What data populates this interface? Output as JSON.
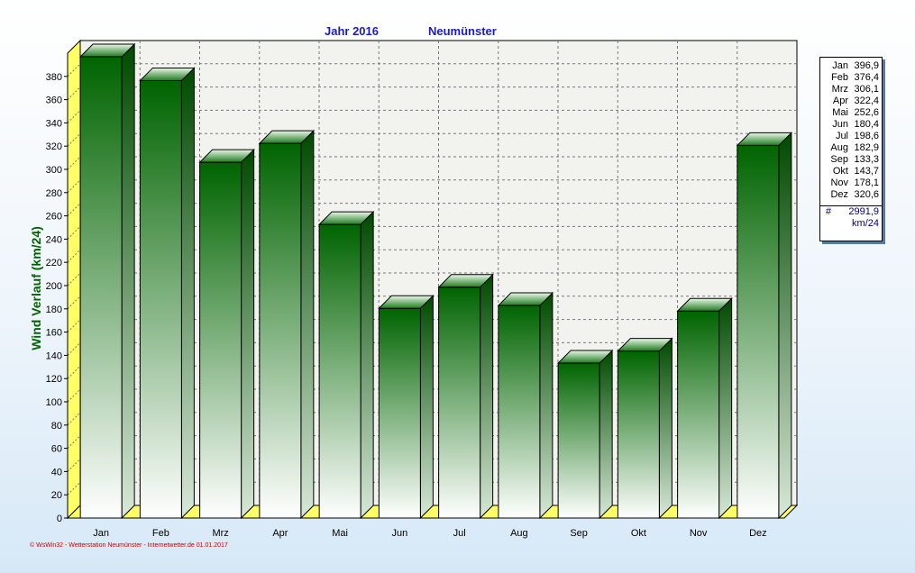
{
  "header": {
    "year_label": "Jahr  2016",
    "station": "Neumünster"
  },
  "chart_data": {
    "type": "bar",
    "categories": [
      "Jan",
      "Feb",
      "Mrz",
      "Apr",
      "Mai",
      "Jun",
      "Jul",
      "Aug",
      "Sep",
      "Okt",
      "Nov",
      "Dez"
    ],
    "values": [
      396.9,
      376.4,
      306.1,
      322.4,
      252.6,
      180.4,
      198.6,
      182.9,
      133.3,
      143.7,
      178.1,
      320.6
    ],
    "ylabel": "Wind Verlauf  (km/24)",
    "ylim": [
      0,
      400
    ],
    "yticks": [
      0,
      20,
      40,
      60,
      80,
      100,
      120,
      140,
      160,
      180,
      200,
      220,
      240,
      260,
      280,
      300,
      320,
      340,
      360,
      380
    ],
    "grid": true,
    "colors": {
      "bar_top": "#006400",
      "bar_bottom": "#ffffff",
      "floor": "#ffff66",
      "plot_bg": "#f2f2ee"
    }
  },
  "legend": {
    "rows": [
      {
        "m": "Jan",
        "v": "396,9"
      },
      {
        "m": "Feb",
        "v": "376,4"
      },
      {
        "m": "Mrz",
        "v": "306,1"
      },
      {
        "m": "Apr",
        "v": "322,4"
      },
      {
        "m": "Mai",
        "v": "252,6"
      },
      {
        "m": "Jun",
        "v": "180,4"
      },
      {
        "m": "Jul",
        "v": "198,6"
      },
      {
        "m": "Aug",
        "v": "182,9"
      },
      {
        "m": "Sep",
        "v": "133,3"
      },
      {
        "m": "Okt",
        "v": "143,7"
      },
      {
        "m": "Nov",
        "v": "178,1"
      },
      {
        "m": "Dez",
        "v": "320,6"
      }
    ],
    "total_symbol": "#",
    "total": "2991,9",
    "unit": "km/24"
  },
  "footer": "© WsWin32 - Wetterstation Neumünster - Internetwetter.de  01.01.2017"
}
